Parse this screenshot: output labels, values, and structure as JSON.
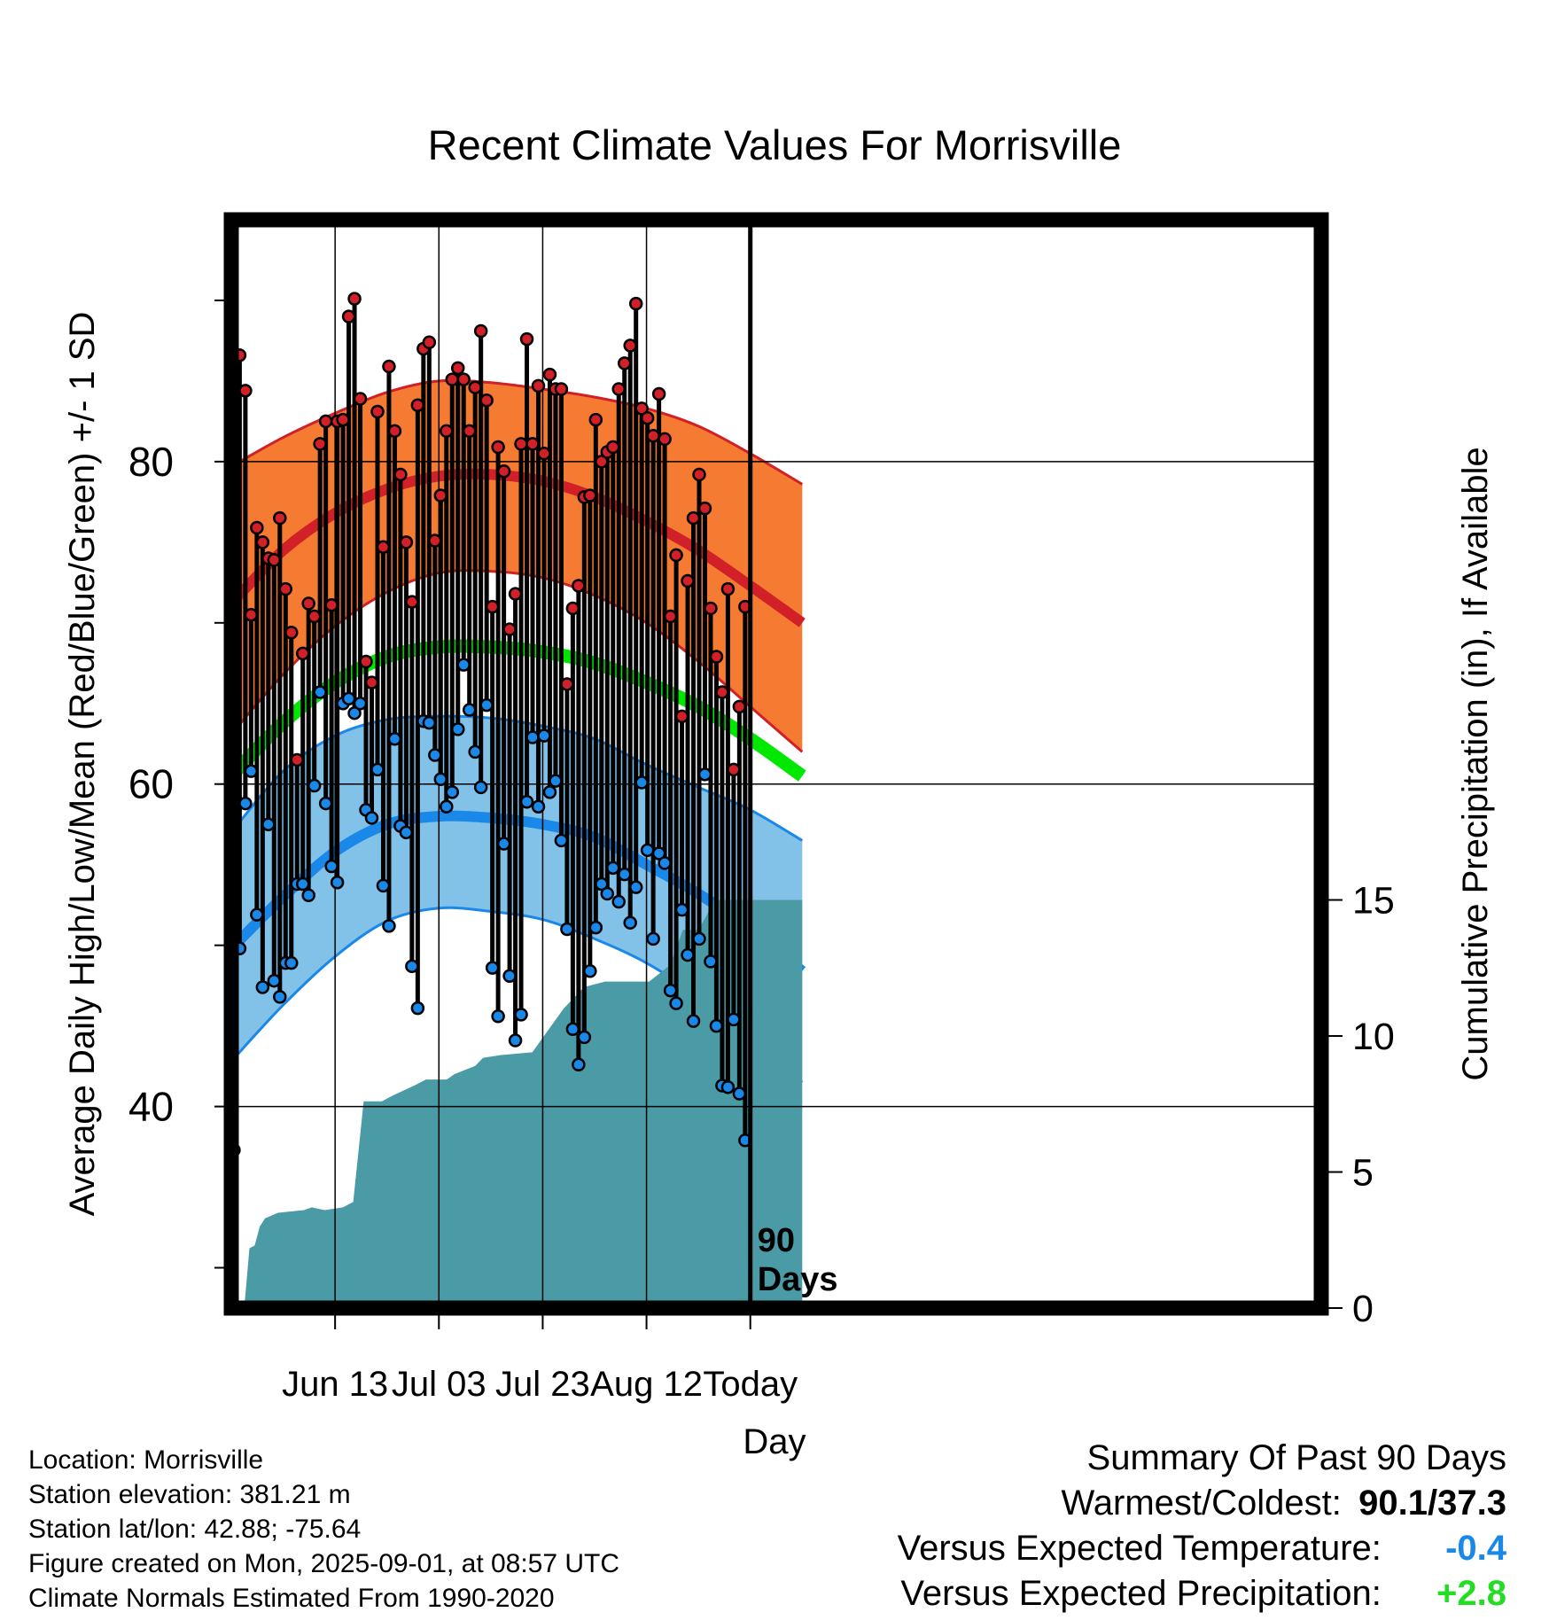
{
  "chart_data": {
    "type": "line",
    "title": "Recent Climate Values For Morrisville",
    "xlabel": "Day",
    "ylabel": "Average Daily High/Low/Mean (Red/Blue/Green) +/- 1 SD",
    "y2label": "Cumulative Precipitation (in), If Available",
    "xlim": [
      -11,
      10
    ],
    "ylim": [
      27.5,
      95
    ],
    "y2lim": [
      0,
      40
    ],
    "x_ticks": [
      {
        "x": -9,
        "label": "Jun 13"
      },
      {
        "x": -7,
        "label": "Jul 03"
      },
      {
        "x": -5,
        "label": "Jul 23"
      },
      {
        "x": -3,
        "label": "Aug 12"
      },
      {
        "x": -1,
        "label": "Today"
      }
    ],
    "y_ticks": [
      {
        "y": 40,
        "label": "40"
      },
      {
        "y": 60,
        "label": "60"
      },
      {
        "y": 80,
        "label": "80"
      }
    ],
    "y_minor_ticks": [
      30,
      50,
      70,
      90
    ],
    "y2_ticks": [
      {
        "y": 0,
        "label": "0"
      },
      {
        "y": 5,
        "label": "5"
      },
      {
        "y": 10,
        "label": "10"
      },
      {
        "y": 15,
        "label": "15"
      }
    ],
    "grid": true,
    "today_marker": {
      "x": -1,
      "label_line1": "90",
      "label_line2": "Days"
    },
    "normals": {
      "x": [
        -11,
        -10,
        -9,
        -8,
        -7,
        -6,
        -5,
        -4,
        -3,
        -2,
        -1,
        0
      ],
      "high_mean": [
        71.2,
        74.5,
        76.8,
        78.3,
        79.1,
        79.2,
        78.8,
        77.8,
        76.3,
        74.5,
        72.3,
        70.0
      ],
      "high_upper": [
        79.7,
        81.5,
        83.0,
        84.3,
        85.0,
        84.9,
        84.5,
        84.0,
        83.3,
        82.2,
        80.5,
        78.6
      ],
      "high_lower": [
        63.1,
        66.8,
        69.8,
        71.9,
        73.1,
        73.2,
        72.8,
        71.7,
        70.0,
        67.6,
        64.8,
        62.0
      ],
      "mean": [
        60.5,
        63.8,
        66.3,
        67.9,
        68.5,
        68.5,
        68.2,
        67.5,
        66.3,
        64.8,
        62.8,
        60.5
      ],
      "low_mean": [
        49.8,
        53.0,
        55.8,
        57.5,
        58.0,
        57.9,
        57.5,
        56.7,
        55.0,
        53.2,
        51.0,
        48.4
      ],
      "low_upper": [
        57.0,
        60.8,
        63.0,
        64.0,
        64.2,
        64.1,
        63.6,
        62.8,
        61.2,
        59.8,
        58.4,
        56.5
      ],
      "low_lower": [
        42.8,
        46.3,
        49.3,
        51.5,
        52.3,
        52.1,
        51.6,
        50.4,
        48.9,
        46.8,
        44.2,
        41.5
      ]
    },
    "series": [
      {
        "name": "High",
        "color": "#d12028",
        "values": [
          76.1,
          86.6,
          84.4,
          70.5,
          75.9,
          75.0,
          74.0,
          73.9,
          76.5,
          72.1,
          69.4,
          61.5,
          68.1,
          71.2,
          70.4,
          81.1,
          82.5,
          71.1,
          82.5,
          82.6,
          89.0,
          90.1,
          83.9,
          67.6,
          66.3,
          83.1,
          74.7,
          85.9,
          81.9,
          79.2,
          75.0,
          71.3,
          83.5,
          87.0,
          87.4,
          75.1,
          77.9,
          81.9,
          85.1,
          85.8,
          85.1,
          81.9,
          84.6,
          88.1,
          83.8,
          71.0,
          80.9,
          79.4,
          69.6,
          71.8,
          81.1,
          87.6,
          81.1,
          84.7,
          80.5,
          85.4,
          84.5,
          84.5,
          66.2,
          70.9,
          72.3,
          77.8,
          77.9,
          82.6,
          80.0,
          80.6,
          80.9,
          84.5,
          86.1,
          87.2,
          89.8,
          83.3,
          82.7,
          81.6,
          84.2,
          81.4,
          70.4,
          74.2,
          64.2,
          72.6,
          76.5,
          79.2,
          77.1,
          70.9,
          67.9,
          65.7,
          72.1,
          60.9,
          64.8,
          71.0
        ]
      },
      {
        "name": "Low",
        "color": "#1a88e8",
        "values": [
          37.3,
          49.8,
          58.8,
          60.8,
          51.9,
          47.4,
          57.5,
          47.8,
          46.8,
          48.9,
          48.9,
          53.8,
          53.8,
          53.1,
          59.9,
          65.7,
          58.8,
          54.9,
          53.9,
          65.0,
          65.3,
          64.4,
          65.0,
          58.4,
          57.9,
          60.9,
          53.7,
          51.2,
          62.8,
          57.4,
          57.0,
          48.7,
          46.1,
          63.9,
          63.8,
          61.8,
          60.3,
          58.6,
          59.5,
          63.4,
          67.4,
          64.6,
          62.0,
          59.8,
          64.9,
          48.6,
          45.6,
          56.3,
          48.1,
          44.1,
          45.7,
          58.9,
          62.9,
          58.6,
          63.0,
          59.5,
          60.2,
          56.5,
          51.0,
          44.8,
          42.6,
          44.3,
          48.4,
          51.1,
          53.8,
          53.2,
          54.8,
          52.7,
          54.4,
          51.4,
          53.6,
          60.1,
          55.9,
          50.4,
          55.7,
          55.1,
          47.2,
          46.4,
          52.2,
          49.4,
          45.3,
          50.4,
          60.6,
          49.0,
          45.0,
          41.3,
          41.2,
          45.4,
          40.8,
          37.9
        ]
      }
    ],
    "precipitation": {
      "color": "#4a9ba5",
      "steps": [
        {
          "x": -10.75,
          "y": 0.0
        },
        {
          "x": -10.65,
          "y": 2.2
        },
        {
          "x": -10.55,
          "y": 2.3
        },
        {
          "x": -10.45,
          "y": 3.0
        },
        {
          "x": -10.35,
          "y": 3.3
        },
        {
          "x": -10.1,
          "y": 3.5
        },
        {
          "x": -9.6,
          "y": 3.6
        },
        {
          "x": -9.45,
          "y": 3.7
        },
        {
          "x": -9.2,
          "y": 3.6
        },
        {
          "x": -8.85,
          "y": 3.7
        },
        {
          "x": -8.65,
          "y": 3.9
        },
        {
          "x": -8.45,
          "y": 7.6
        },
        {
          "x": -8.1,
          "y": 7.6
        },
        {
          "x": -7.9,
          "y": 7.8
        },
        {
          "x": -7.45,
          "y": 8.2
        },
        {
          "x": -7.25,
          "y": 8.4
        },
        {
          "x": -6.85,
          "y": 8.4
        },
        {
          "x": -6.7,
          "y": 8.6
        },
        {
          "x": -6.3,
          "y": 8.9
        },
        {
          "x": -6.15,
          "y": 9.2
        },
        {
          "x": -5.8,
          "y": 9.3
        },
        {
          "x": -5.2,
          "y": 9.4
        },
        {
          "x": -4.6,
          "y": 11.0
        },
        {
          "x": -4.2,
          "y": 11.8
        },
        {
          "x": -3.8,
          "y": 12.0
        },
        {
          "x": -3.25,
          "y": 12.0
        },
        {
          "x": -2.95,
          "y": 12.0
        },
        {
          "x": -2.55,
          "y": 12.6
        },
        {
          "x": -2.3,
          "y": 13.9
        },
        {
          "x": -2.0,
          "y": 13.9
        },
        {
          "x": -1.85,
          "y": 14.4
        },
        {
          "x": -1.7,
          "y": 15.0
        },
        {
          "x": -1.0,
          "y": 15.0
        },
        {
          "x": 0.0,
          "y": 15.0
        }
      ]
    },
    "colors": {
      "high_band": "#f47b31",
      "high_edge": "#d12028",
      "high_mean_line": "#d12028",
      "mean_line": "#00e800",
      "low_band": "#82c1e8",
      "low_edge": "#1a88e8",
      "low_mean_line": "#1a88e8",
      "precip_fill": "#4a9ba5"
    }
  },
  "location_info": {
    "location": "Location: Morrisville",
    "elevation": "Station elevation: 381.21 m",
    "latlon": "Station lat/lon: 42.88; -75.64",
    "created": "Figure created on Mon, 2025-09-01, at 08:57 UTC",
    "normals": "Climate Normals Estimated From 1990-2020"
  },
  "summary": {
    "heading": "Summary Of Past 90 Days",
    "warmest_coldest_label": "Warmest/Coldest:",
    "warmest_coldest_value": "90.1/37.3",
    "temp_label": "Versus Expected Temperature:",
    "temp_value": "-0.4",
    "temp_color": "#1a88e8",
    "precip_label": "Versus Expected Precipitation:",
    "precip_value": "+2.8",
    "precip_color": "#22dd22"
  }
}
